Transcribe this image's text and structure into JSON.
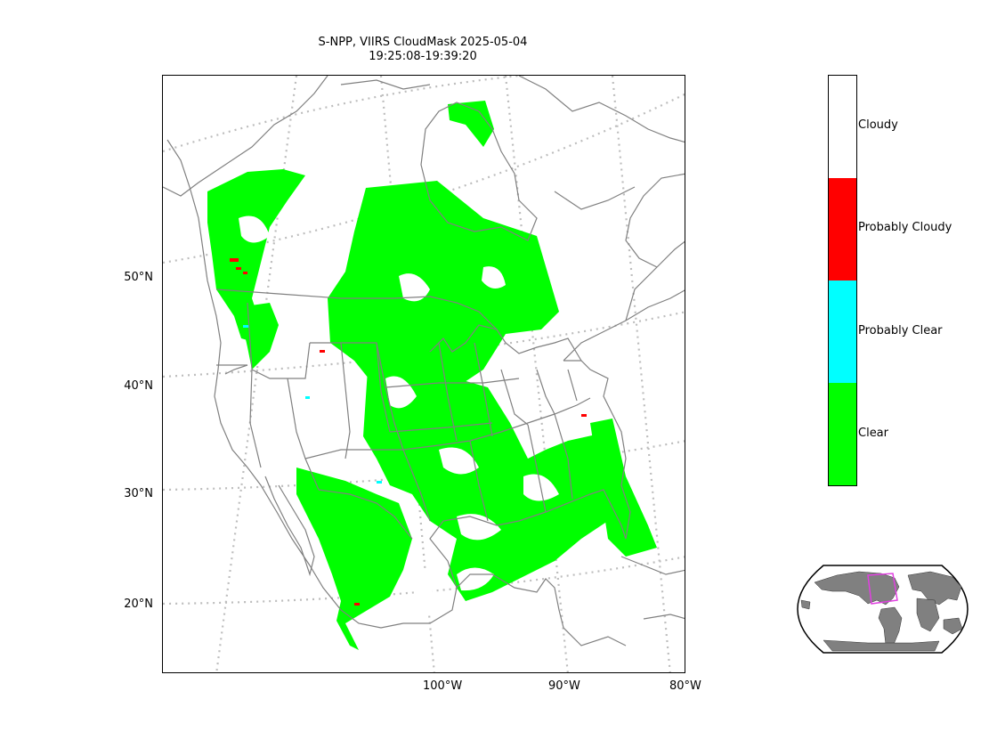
{
  "title": {
    "line1": "S-NPP, VIIRS CloudMask 2025-05-04",
    "line2": "19:25:08-19:39:20"
  },
  "map": {
    "lat_labels": [
      "50°N",
      "40°N",
      "30°N",
      "20°N"
    ],
    "lon_labels": [
      "100°W",
      "90°W",
      "80°W"
    ],
    "colors": {
      "clear": "#00ff00",
      "probably_clear": "#00ffff",
      "probably_cloudy": "#ff0000",
      "cloudy": "#ffffff",
      "border": "#808080",
      "graticule": "#bdbdbd"
    }
  },
  "colorbar": {
    "categories": [
      {
        "label": "Cloudy",
        "color": "#ffffff"
      },
      {
        "label": "Probably Cloudy",
        "color": "#ff0000"
      },
      {
        "label": "Probably Clear",
        "color": "#00ffff"
      },
      {
        "label": "Clear",
        "color": "#00ff00"
      }
    ]
  },
  "inset": {
    "land_color": "#808080",
    "swath_outline_color": "#e040e0"
  }
}
